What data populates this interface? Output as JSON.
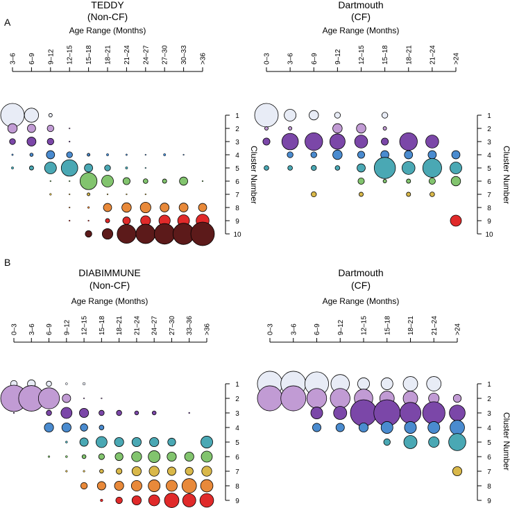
{
  "panel_labels": [
    "A",
    "B"
  ],
  "colors": {
    "1": "#E8ECF6",
    "2": "#C19BD4",
    "3": "#7B47A8",
    "4": "#4A8BCF",
    "5": "#4AA8B4",
    "6": "#82C46E",
    "7": "#D9B84A",
    "8": "#E8893A",
    "9": "#E02A2A",
    "10": "#5C1A1A"
  },
  "chart_data": [
    {
      "type": "bubble",
      "id": "teddy",
      "title": "TEDDY",
      "subtitle": "(Non-CF)",
      "xlabel": "Age Range (Months)",
      "ylabel": "Cluster Number",
      "categories": [
        "3–6",
        "6–9",
        "9–12",
        "12–15",
        "15–18",
        "18–21",
        "21–24",
        "24–27",
        "27–30",
        "30–33",
        ">36"
      ],
      "clusters": [
        "1",
        "2",
        "3",
        "4",
        "5",
        "6",
        "7",
        "8",
        "9",
        "10"
      ],
      "values": [
        [
          1.0,
          0.6,
          0.15,
          0,
          0,
          0,
          0,
          0,
          0,
          0,
          0
        ],
        [
          0.4,
          0.35,
          0.28,
          0.03,
          0,
          0,
          0,
          0,
          0,
          0,
          0
        ],
        [
          0.25,
          0.38,
          0.28,
          0.05,
          0,
          0,
          0,
          0,
          0,
          0,
          0
        ],
        [
          0.07,
          0.14,
          0.35,
          0.25,
          0.12,
          0.1,
          0.07,
          0.03,
          0.1,
          0.03,
          0
        ],
        [
          0.1,
          0.18,
          0.5,
          0.7,
          0.35,
          0.25,
          0.1,
          0.05,
          0,
          0,
          0
        ],
        [
          0,
          0,
          0.04,
          0.05,
          0.72,
          0.5,
          0.3,
          0.2,
          0.18,
          0.35,
          0.05
        ],
        [
          0,
          0,
          0.08,
          0.04,
          0.12,
          0.05,
          0.03,
          0.03,
          0,
          0,
          0
        ],
        [
          0,
          0,
          0,
          0.05,
          0.08,
          0.35,
          0.4,
          0.45,
          0.38,
          0.38,
          0.35
        ],
        [
          0,
          0,
          0,
          0.03,
          0.05,
          0.18,
          0.32,
          0.42,
          0.48,
          0.5,
          0.55
        ],
        [
          0,
          0,
          0,
          0,
          0.28,
          0.45,
          0.8,
          0.82,
          0.87,
          0.9,
          1.0
        ]
      ]
    },
    {
      "type": "bubble",
      "id": "dart-a",
      "title": "Dartmouth",
      "subtitle": "(CF)",
      "xlabel": "Age Range (Months)",
      "ylabel": "Cluster Number",
      "categories": [
        "0–3",
        "3–6",
        "6–9",
        "9–12",
        "12–15",
        "15–18",
        "18–21",
        "21–24",
        ">24"
      ],
      "clusters": [
        "1",
        "2",
        "3",
        "4",
        "5",
        "6",
        "7",
        "8",
        "9",
        "10"
      ],
      "values": [
        [
          1.0,
          0.5,
          0.4,
          0.25,
          0,
          0.25,
          0,
          0,
          0
        ],
        [
          0.15,
          0.15,
          0,
          0.4,
          0.4,
          0.15,
          0,
          0,
          0
        ],
        [
          0.3,
          0.7,
          0.75,
          0.65,
          0.55,
          0.3,
          0.75,
          0.55,
          0
        ],
        [
          0,
          0.25,
          0.25,
          0.4,
          0.3,
          0.35,
          0.35,
          0.35,
          0.35
        ],
        [
          0.2,
          0.2,
          0.22,
          0.2,
          0.35,
          0.9,
          0.55,
          0.8,
          0.5
        ],
        [
          0,
          0,
          0,
          0,
          0.27,
          0.15,
          0.18,
          0.27,
          0.4
        ],
        [
          0,
          0,
          0.22,
          0,
          0.18,
          0,
          0.18,
          0.2,
          0
        ],
        [
          0,
          0,
          0,
          0,
          0,
          0,
          0,
          0,
          0
        ],
        [
          0,
          0,
          0,
          0,
          0,
          0,
          0,
          0,
          0.47
        ],
        [
          0,
          0,
          0,
          0,
          0,
          0,
          0,
          0,
          0
        ]
      ]
    },
    {
      "type": "bubble",
      "id": "diabimmune",
      "title": "DIABIMMUNE",
      "subtitle": "(Non-CF)",
      "xlabel": "Age Range (Months)",
      "ylabel": "Cluster Number",
      "categories": [
        "0–3",
        "3–6",
        "6–9",
        "9–12",
        "12–15",
        "15–18",
        "18–21",
        "21–24",
        "24–27",
        "27–30",
        "33–36",
        ">36"
      ],
      "clusters": [
        "1",
        "2",
        "3",
        "4",
        "5",
        "6",
        "7",
        "8",
        "9"
      ],
      "values": [
        [
          0.25,
          0.3,
          0.2,
          0.08,
          0.1,
          0,
          0,
          0,
          0,
          0,
          0,
          0
        ],
        [
          1.0,
          0.97,
          0.8,
          0.32,
          0.03,
          0.02,
          0,
          0,
          0,
          0,
          0,
          0
        ],
        [
          0.03,
          0,
          0.2,
          0.42,
          0.35,
          0.2,
          0.2,
          0.15,
          0.15,
          0,
          0.05,
          0
        ],
        [
          0,
          0,
          0.35,
          0.35,
          0.28,
          0.18,
          0,
          0,
          0,
          0,
          0,
          0
        ],
        [
          0,
          0,
          0,
          0.08,
          0.32,
          0.42,
          0.35,
          0.35,
          0.35,
          0.3,
          0,
          0.45
        ],
        [
          0,
          0,
          0.07,
          0.08,
          0.15,
          0.22,
          0.3,
          0.38,
          0.45,
          0.35,
          0.35,
          0.42
        ],
        [
          0,
          0,
          0,
          0.07,
          0.07,
          0.15,
          0.22,
          0.35,
          0.38,
          0.32,
          0.3,
          0.38
        ],
        [
          0,
          0,
          0,
          0,
          0.25,
          0.32,
          0.35,
          0.4,
          0.45,
          0.42,
          0.55,
          0.47
        ],
        [
          0,
          0,
          0,
          0,
          0,
          0.1,
          0.25,
          0.35,
          0.42,
          0.55,
          0.5,
          0.52
        ]
      ]
    },
    {
      "type": "bubble",
      "id": "dart-b",
      "title": "Dartmouth",
      "subtitle": "(CF)",
      "xlabel": "Age Range (Months)",
      "ylabel": "Cluster Number",
      "categories": [
        "0–3",
        "3–6",
        "6–9",
        "9–12",
        "12–15",
        "15–18",
        "18–21",
        "21–24",
        ">24"
      ],
      "clusters": [
        "1",
        "2",
        "3",
        "4",
        "5",
        "6",
        "7",
        "8",
        "9"
      ],
      "values": [
        [
          0.95,
          0.95,
          0.9,
          0.7,
          0.45,
          0.45,
          0.55,
          0.55,
          0
        ],
        [
          0.95,
          0.95,
          0.75,
          0.75,
          0.7,
          0.55,
          0.55,
          0.4,
          0.3
        ],
        [
          0,
          0,
          0.45,
          0.5,
          1.0,
          1.0,
          0.8,
          0.85,
          0.6
        ],
        [
          0,
          0,
          0.32,
          0.32,
          0.35,
          0.45,
          0.45,
          0.45,
          0.55
        ],
        [
          0,
          0,
          0,
          0,
          0,
          0.25,
          0.5,
          0.4,
          0.65
        ],
        [
          0,
          0,
          0,
          0,
          0,
          0,
          0,
          0,
          0
        ],
        [
          0,
          0,
          0,
          0,
          0,
          0,
          0,
          0,
          0.35
        ],
        [
          0,
          0,
          0,
          0,
          0,
          0,
          0,
          0,
          0
        ],
        [
          0,
          0,
          0,
          0,
          0,
          0,
          0,
          0,
          0
        ]
      ]
    }
  ]
}
